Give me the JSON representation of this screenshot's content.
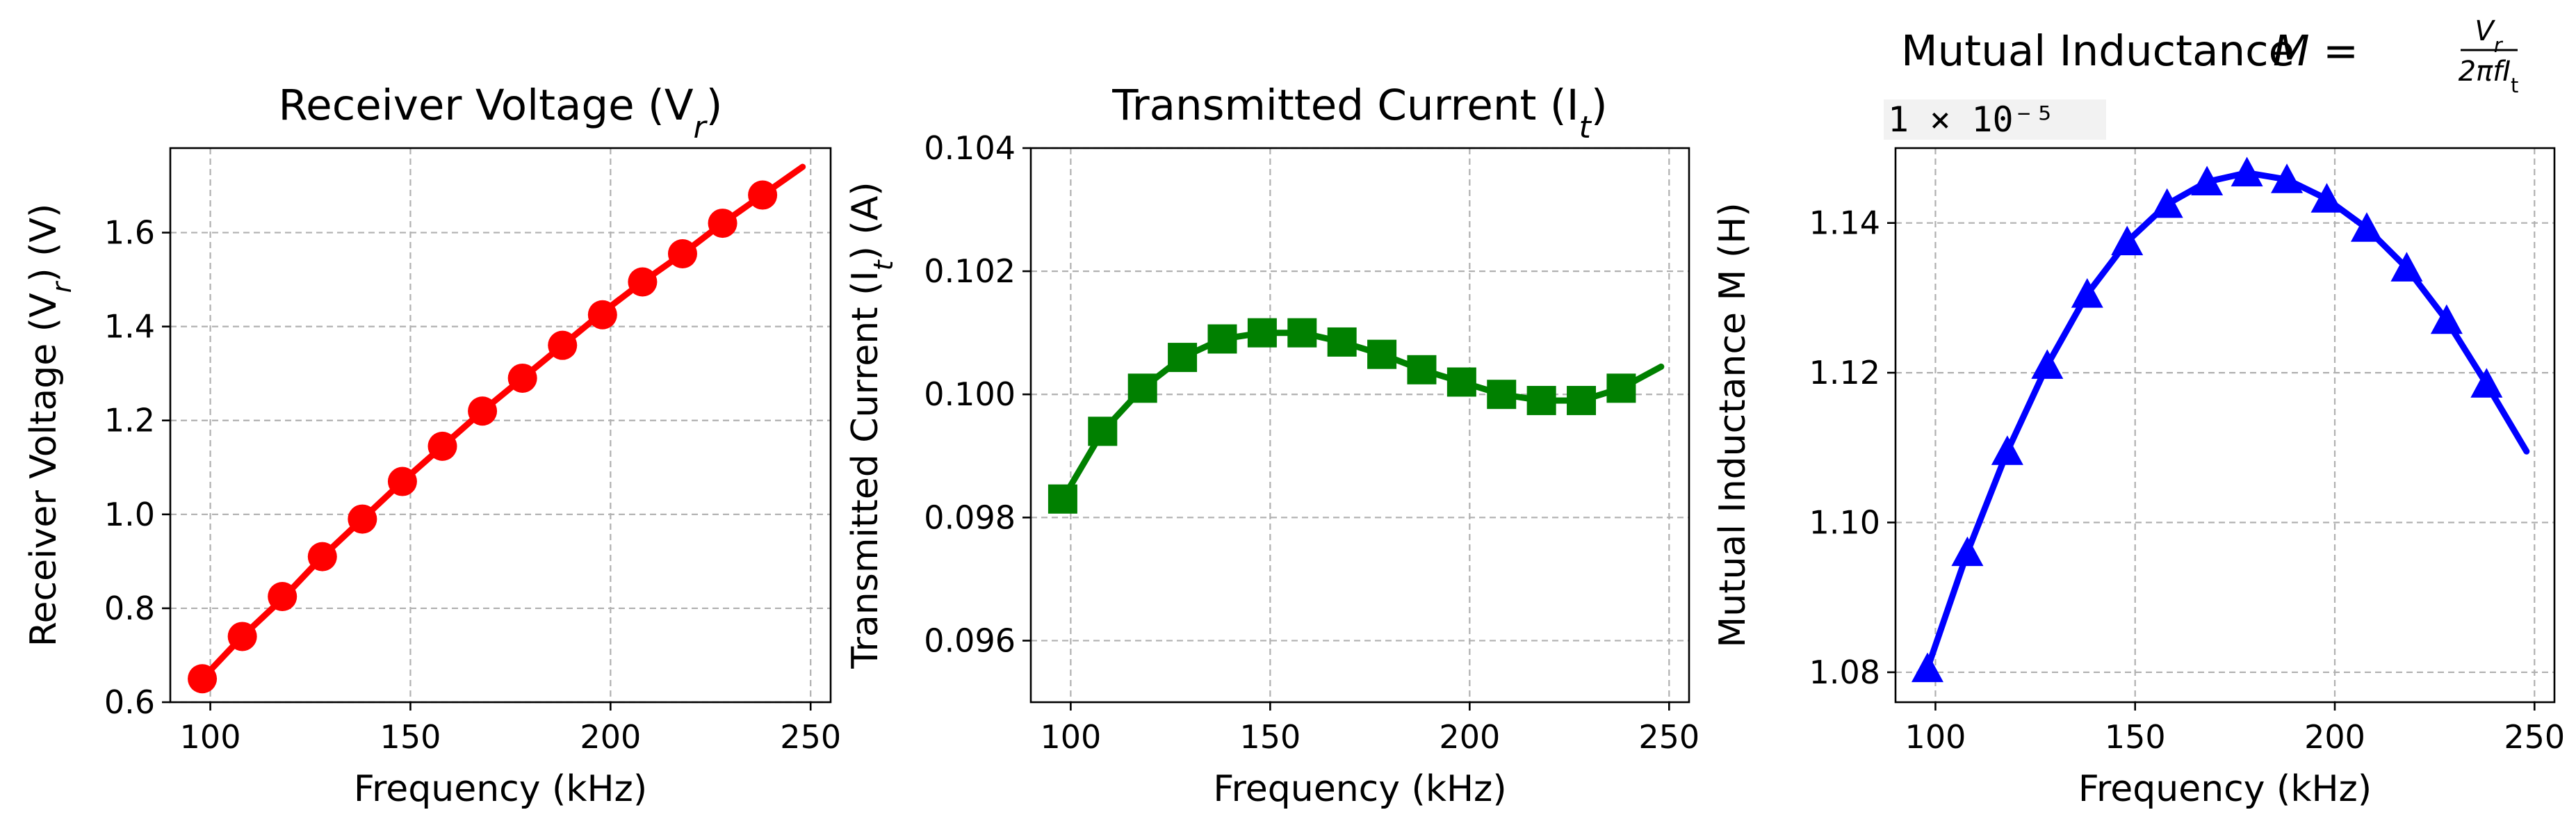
{
  "figure": {
    "background": "#ffffff",
    "grid_color": "#b0b0b0"
  },
  "chart_data": [
    {
      "type": "line",
      "title_main": "Receiver Voltage (V",
      "title_sub": "r",
      "title_end": ")",
      "xlabel": "Frequency (kHz)",
      "ylabel_main": "Receiver Voltage (V",
      "ylabel_sub": "r",
      "ylabel_end": ") (V)",
      "xlim": [
        90,
        255
      ],
      "ylim": [
        0.6,
        1.78
      ],
      "xticks": [
        100,
        150,
        200,
        250
      ],
      "xtick_labels": [
        "100",
        "150",
        "200",
        "250"
      ],
      "yticks": [
        0.6,
        0.8,
        1.0,
        1.2,
        1.4,
        1.6
      ],
      "ytick_labels": [
        "0.6",
        "0.8",
        "1.0",
        "1.2",
        "1.4",
        "1.6"
      ],
      "grid": true,
      "color": "#ff0000",
      "marker": "circle",
      "curve": {
        "x": [
          98,
          108,
          118,
          128,
          138,
          148,
          158,
          168,
          178,
          188,
          198,
          208,
          218,
          228,
          238,
          248
        ],
        "y": [
          0.65,
          0.74,
          0.82,
          0.91,
          0.99,
          1.07,
          1.145,
          1.22,
          1.29,
          1.36,
          1.43,
          1.495,
          1.555,
          1.62,
          1.68,
          1.74
        ]
      },
      "markers": {
        "x": [
          98,
          108,
          118,
          128,
          138,
          148,
          158,
          168,
          178,
          188,
          198,
          208,
          218,
          228,
          238
        ],
        "y": [
          0.65,
          0.74,
          0.825,
          0.91,
          0.99,
          1.07,
          1.145,
          1.22,
          1.29,
          1.36,
          1.425,
          1.495,
          1.555,
          1.62,
          1.68
        ]
      }
    },
    {
      "type": "line",
      "title_main": "Transmitted Current (I",
      "title_sub": "t",
      "title_end": ")",
      "xlabel": "Frequency (kHz)",
      "ylabel_main": "Transmitted Current (I",
      "ylabel_sub": "t",
      "ylabel_end": ") (A)",
      "xlim": [
        90,
        255
      ],
      "ylim": [
        0.095,
        0.104
      ],
      "xticks": [
        100,
        150,
        200,
        250
      ],
      "xtick_labels": [
        "100",
        "150",
        "200",
        "250"
      ],
      "yticks": [
        0.096,
        0.098,
        0.1,
        0.102,
        0.104
      ],
      "ytick_labels": [
        "0.096",
        "0.098",
        "0.100",
        "0.102",
        "0.104"
      ],
      "grid": true,
      "color": "#008000",
      "marker": "square",
      "curve": {
        "x": [
          98,
          108,
          118,
          128,
          138,
          148,
          158,
          168,
          178,
          188,
          198,
          208,
          218,
          228,
          238,
          248
        ],
        "y": [
          0.0983,
          0.0994,
          0.1001,
          0.1006,
          0.1009,
          0.101,
          0.101,
          0.10085,
          0.10065,
          0.1004,
          0.1002,
          0.1,
          0.0999,
          0.0999,
          0.1001,
          0.10045
        ]
      },
      "markers": {
        "x": [
          98,
          108,
          118,
          128,
          138,
          148,
          158,
          168,
          178,
          188,
          198,
          208,
          218,
          228,
          238
        ],
        "y": [
          0.0983,
          0.0994,
          0.1001,
          0.1006,
          0.1009,
          0.101,
          0.101,
          0.10085,
          0.10065,
          0.1004,
          0.1002,
          0.1,
          0.0999,
          0.0999,
          0.1001
        ]
      }
    },
    {
      "type": "line",
      "title_main": "Mutual Inductance",
      "title_formula_lhs": "M = ",
      "title_frac_num": "V",
      "title_frac_num_sub": "r",
      "title_frac_den": "2πfI",
      "title_frac_den_sub": "t",
      "offset_text": "1 × 10⁻⁵",
      "xlabel": "Frequency (kHz)",
      "ylabel": "Mutual Inductance M (H)",
      "xlim": [
        90,
        255
      ],
      "ylim": [
        1.076,
        1.15
      ],
      "xticks": [
        100,
        150,
        200,
        250
      ],
      "xtick_labels": [
        "100",
        "150",
        "200",
        "250"
      ],
      "yticks": [
        1.08,
        1.1,
        1.12,
        1.14
      ],
      "ytick_labels": [
        "1.08",
        "1.10",
        "1.12",
        "1.14"
      ],
      "grid": true,
      "color": "#0000ff",
      "marker": "triangle",
      "curve": {
        "x": [
          98,
          108,
          118,
          128,
          138,
          148,
          158,
          168,
          178,
          188,
          198,
          208,
          218,
          228,
          238,
          248
        ],
        "y": [
          1.0805,
          1.096,
          1.1095,
          1.121,
          1.1305,
          1.1375,
          1.1425,
          1.1455,
          1.1467,
          1.1458,
          1.1432,
          1.1393,
          1.134,
          1.127,
          1.1185,
          1.1095
        ]
      },
      "markers": {
        "x": [
          98,
          108,
          118,
          128,
          138,
          148,
          158,
          168,
          178,
          188,
          198,
          208,
          218,
          228,
          238
        ],
        "y": [
          1.0805,
          1.096,
          1.1095,
          1.121,
          1.1305,
          1.1375,
          1.1425,
          1.1455,
          1.1467,
          1.1458,
          1.1432,
          1.1393,
          1.134,
          1.127,
          1.1185
        ]
      }
    }
  ]
}
